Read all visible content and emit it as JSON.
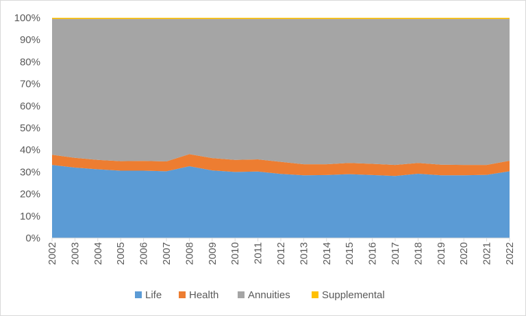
{
  "chart_data": {
    "type": "area",
    "stacked": "percent",
    "categories": [
      "2002",
      "2003",
      "2004",
      "2005",
      "2006",
      "2007",
      "2008",
      "2009",
      "2010",
      "2011",
      "2012",
      "2013",
      "2014",
      "2015",
      "2016",
      "2017",
      "2018",
      "2019",
      "2020",
      "2021",
      "2022"
    ],
    "y_ticks": [
      "0%",
      "10%",
      "20%",
      "30%",
      "40%",
      "50%",
      "60%",
      "70%",
      "80%",
      "90%",
      "100%"
    ],
    "ylim": [
      0,
      100
    ],
    "grid": false,
    "legend_position": "bottom",
    "series": [
      {
        "name": "Life",
        "color": "#5b9bd5",
        "values": [
          33.2,
          32.0,
          31.2,
          30.6,
          30.6,
          30.3,
          32.6,
          30.7,
          30.0,
          30.2,
          29.1,
          28.5,
          28.6,
          29.0,
          28.6,
          28.2,
          29.2,
          28.5,
          28.5,
          28.7,
          30.3
        ]
      },
      {
        "name": "Health",
        "color": "#ed7d31",
        "values": [
          4.6,
          4.4,
          4.3,
          4.3,
          4.4,
          4.5,
          5.5,
          5.6,
          5.5,
          5.5,
          5.5,
          5.0,
          4.9,
          5.1,
          5.1,
          5.0,
          4.9,
          4.8,
          4.7,
          4.5,
          4.8
        ]
      },
      {
        "name": "Annuities",
        "color": "#a5a5a5",
        "values": [
          61.7,
          63.1,
          64.0,
          64.6,
          64.5,
          64.7,
          61.4,
          63.2,
          64.0,
          63.8,
          64.9,
          66.0,
          66.0,
          65.4,
          65.8,
          66.3,
          65.4,
          66.2,
          66.3,
          66.3,
          64.4
        ]
      },
      {
        "name": "Supplemental",
        "color": "#ffc000",
        "values": [
          0.5,
          0.5,
          0.5,
          0.5,
          0.5,
          0.5,
          0.5,
          0.5,
          0.5,
          0.5,
          0.5,
          0.5,
          0.5,
          0.5,
          0.5,
          0.5,
          0.5,
          0.5,
          0.5,
          0.5,
          0.5
        ]
      }
    ]
  }
}
